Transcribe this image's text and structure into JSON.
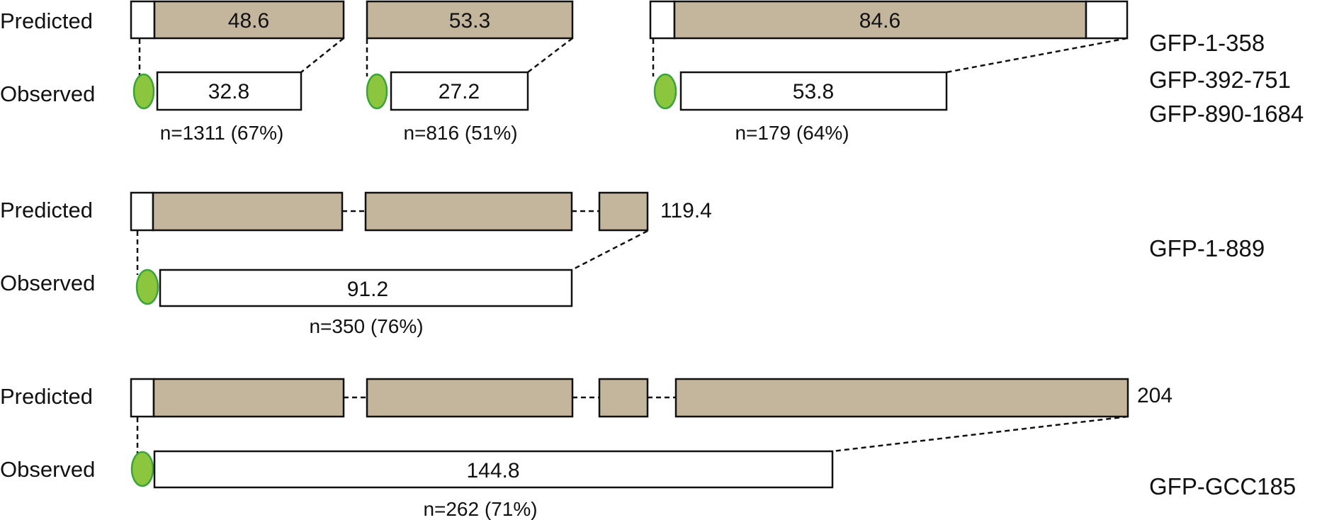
{
  "labels": {
    "predicted": "Predicted",
    "observed": "Observed"
  },
  "colors": {
    "predicted_fill": "#c4b59d",
    "observed_fill": "#ffffff",
    "gfp_fill": "#8cc63f",
    "gfp_stroke": "#3aa43a"
  },
  "constructs": [
    "GFP-1-358",
    "GFP-392-751",
    "GFP-890-1684",
    "GFP-1-889",
    "GFP-GCC185"
  ],
  "row1": {
    "a": {
      "predicted": "48.6",
      "observed": "32.8",
      "n": "n=1311 (67%)"
    },
    "b": {
      "predicted": "53.3",
      "observed": "27.2",
      "n": "n=816 (51%)"
    },
    "c": {
      "predicted": "84.6",
      "observed": "53.8",
      "n": "n=179 (64%)"
    }
  },
  "row2": {
    "predicted": "119.4",
    "observed": "91.2",
    "n": "n=350 (76%)"
  },
  "row3": {
    "predicted": "204",
    "observed": "144.8",
    "n": "n=262 (71%)"
  }
}
